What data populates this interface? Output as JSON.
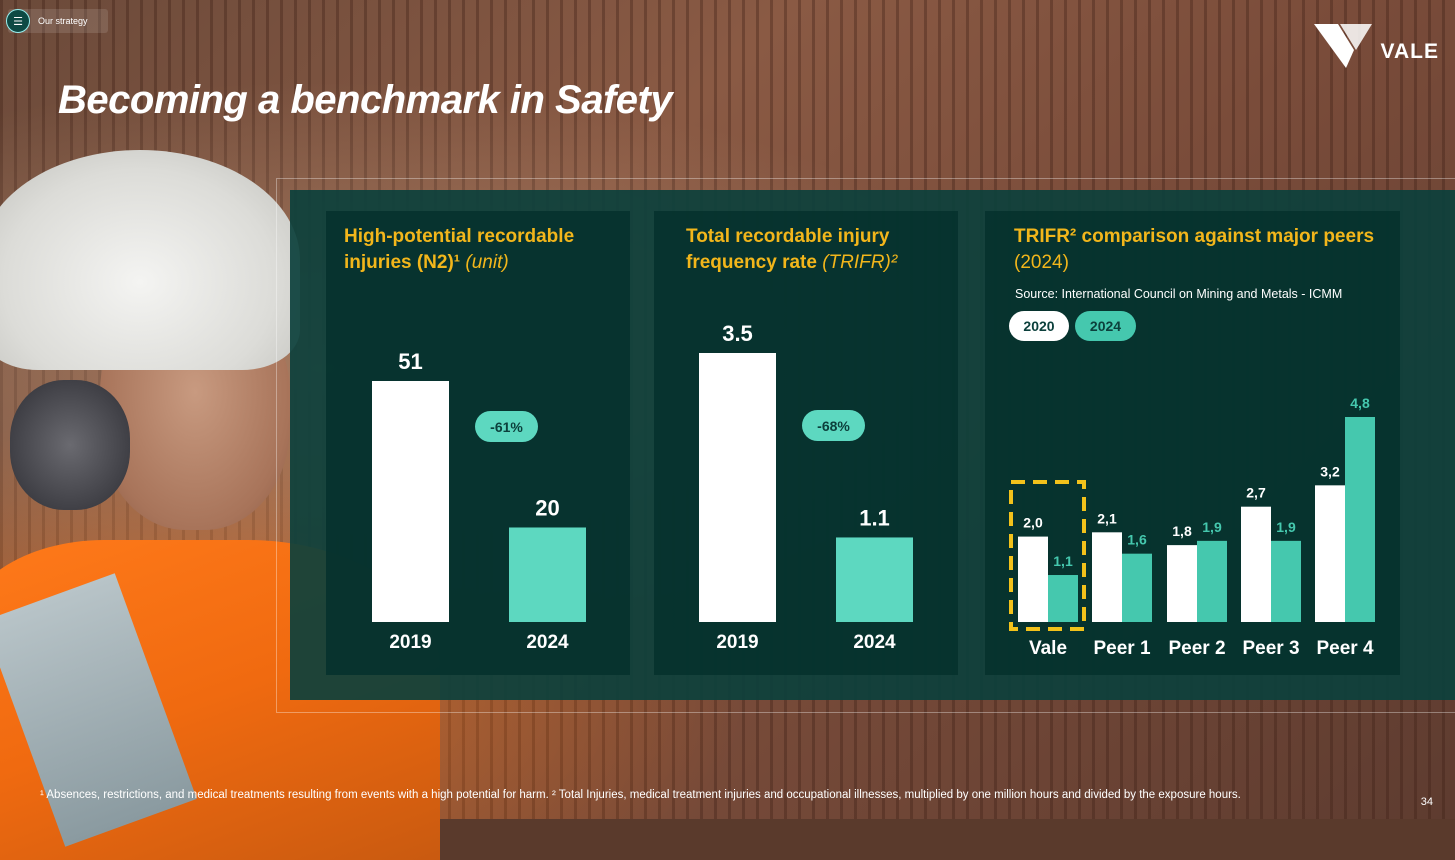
{
  "header": {
    "tag_label": "Our strategy",
    "logo_text": "VALE",
    "title": "Becoming a benchmark in Safety"
  },
  "colors": {
    "white_bar": "#ffffff",
    "teal_bar": "#5dd8c0",
    "peer_teal": "#45c8ae",
    "accent": "#f2b61b",
    "highlight_dash": "#f2c21b"
  },
  "chart_data": [
    {
      "type": "bar",
      "title": "High-potential recordable injuries (N2)¹",
      "title_line1": "High-potential recordable",
      "title_line2": "injuries (N2)¹",
      "unit": "(unit)",
      "categories": [
        "2019",
        "2024"
      ],
      "values": [
        51,
        20
      ],
      "value_labels": [
        "51",
        "20"
      ],
      "change_label": "-61%",
      "ylim": [
        0,
        51
      ]
    },
    {
      "type": "bar",
      "title": "Total recordable injury frequency rate (TRIFR)²",
      "title_line1": "Total recordable injury",
      "title_line2": "frequency rate",
      "unit": "(TRIFR)²",
      "categories": [
        "2019",
        "2024"
      ],
      "values": [
        3.5,
        1.1
      ],
      "value_labels": [
        "3.5",
        "1.1"
      ],
      "change_label": "-68%",
      "ylim": [
        0,
        3.5
      ]
    },
    {
      "type": "bar",
      "title": "TRIFR² comparison against major peers (2024)",
      "title_line1": "TRIFR² comparison against major peers",
      "title_line2": "(2024)",
      "source": "Source: International Council on Mining and Metals - ICMM",
      "legend": [
        "2020",
        "2024"
      ],
      "categories": [
        "Vale",
        "Peer 1",
        "Peer 2",
        "Peer 3",
        "Peer 4"
      ],
      "series": [
        {
          "name": "2020",
          "values": [
            2.0,
            2.1,
            1.8,
            2.7,
            3.2
          ],
          "labels": [
            "2,0",
            "2,1",
            "1,8",
            "2,7",
            "3,2"
          ]
        },
        {
          "name": "2024",
          "values": [
            1.1,
            1.6,
            1.9,
            1.9,
            4.8
          ],
          "labels": [
            "1,1",
            "1,6",
            "1,9",
            "1,9",
            "4,8"
          ]
        }
      ],
      "highlight_category": "Vale",
      "ylim": [
        0,
        4.8
      ]
    }
  ],
  "footnote": "¹ Absences, restrictions, and medical treatments resulting from events with a high potential for harm. ² Total Injuries, medical treatment injuries and occupational illnesses, multiplied by one million hours and divided by the exposure hours.",
  "page_number": "34"
}
